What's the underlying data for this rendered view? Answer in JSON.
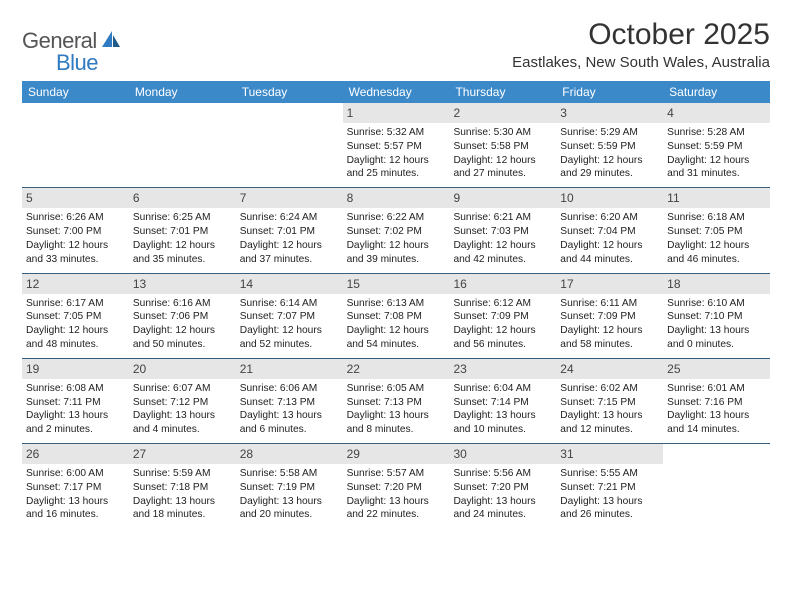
{
  "brand": {
    "name_a": "General",
    "name_b": "Blue"
  },
  "title": "October 2025",
  "location": "Eastlakes, New South Wales, Australia",
  "colors": {
    "header_bg": "#3b89c9",
    "header_text": "#ffffff",
    "daynum_bg": "#e6e6e6",
    "rule": "#3b5f7a",
    "brand_blue": "#2f7ac0",
    "brand_gray": "#555555"
  },
  "day_names": [
    "Sunday",
    "Monday",
    "Tuesday",
    "Wednesday",
    "Thursday",
    "Friday",
    "Saturday"
  ],
  "weeks": [
    [
      null,
      null,
      null,
      {
        "n": "1",
        "sr": "5:32 AM",
        "ss": "5:57 PM",
        "dl": "12 hours and 25 minutes."
      },
      {
        "n": "2",
        "sr": "5:30 AM",
        "ss": "5:58 PM",
        "dl": "12 hours and 27 minutes."
      },
      {
        "n": "3",
        "sr": "5:29 AM",
        "ss": "5:59 PM",
        "dl": "12 hours and 29 minutes."
      },
      {
        "n": "4",
        "sr": "5:28 AM",
        "ss": "5:59 PM",
        "dl": "12 hours and 31 minutes."
      }
    ],
    [
      {
        "n": "5",
        "sr": "6:26 AM",
        "ss": "7:00 PM",
        "dl": "12 hours and 33 minutes."
      },
      {
        "n": "6",
        "sr": "6:25 AM",
        "ss": "7:01 PM",
        "dl": "12 hours and 35 minutes."
      },
      {
        "n": "7",
        "sr": "6:24 AM",
        "ss": "7:01 PM",
        "dl": "12 hours and 37 minutes."
      },
      {
        "n": "8",
        "sr": "6:22 AM",
        "ss": "7:02 PM",
        "dl": "12 hours and 39 minutes."
      },
      {
        "n": "9",
        "sr": "6:21 AM",
        "ss": "7:03 PM",
        "dl": "12 hours and 42 minutes."
      },
      {
        "n": "10",
        "sr": "6:20 AM",
        "ss": "7:04 PM",
        "dl": "12 hours and 44 minutes."
      },
      {
        "n": "11",
        "sr": "6:18 AM",
        "ss": "7:05 PM",
        "dl": "12 hours and 46 minutes."
      }
    ],
    [
      {
        "n": "12",
        "sr": "6:17 AM",
        "ss": "7:05 PM",
        "dl": "12 hours and 48 minutes."
      },
      {
        "n": "13",
        "sr": "6:16 AM",
        "ss": "7:06 PM",
        "dl": "12 hours and 50 minutes."
      },
      {
        "n": "14",
        "sr": "6:14 AM",
        "ss": "7:07 PM",
        "dl": "12 hours and 52 minutes."
      },
      {
        "n": "15",
        "sr": "6:13 AM",
        "ss": "7:08 PM",
        "dl": "12 hours and 54 minutes."
      },
      {
        "n": "16",
        "sr": "6:12 AM",
        "ss": "7:09 PM",
        "dl": "12 hours and 56 minutes."
      },
      {
        "n": "17",
        "sr": "6:11 AM",
        "ss": "7:09 PM",
        "dl": "12 hours and 58 minutes."
      },
      {
        "n": "18",
        "sr": "6:10 AM",
        "ss": "7:10 PM",
        "dl": "13 hours and 0 minutes."
      }
    ],
    [
      {
        "n": "19",
        "sr": "6:08 AM",
        "ss": "7:11 PM",
        "dl": "13 hours and 2 minutes."
      },
      {
        "n": "20",
        "sr": "6:07 AM",
        "ss": "7:12 PM",
        "dl": "13 hours and 4 minutes."
      },
      {
        "n": "21",
        "sr": "6:06 AM",
        "ss": "7:13 PM",
        "dl": "13 hours and 6 minutes."
      },
      {
        "n": "22",
        "sr": "6:05 AM",
        "ss": "7:13 PM",
        "dl": "13 hours and 8 minutes."
      },
      {
        "n": "23",
        "sr": "6:04 AM",
        "ss": "7:14 PM",
        "dl": "13 hours and 10 minutes."
      },
      {
        "n": "24",
        "sr": "6:02 AM",
        "ss": "7:15 PM",
        "dl": "13 hours and 12 minutes."
      },
      {
        "n": "25",
        "sr": "6:01 AM",
        "ss": "7:16 PM",
        "dl": "13 hours and 14 minutes."
      }
    ],
    [
      {
        "n": "26",
        "sr": "6:00 AM",
        "ss": "7:17 PM",
        "dl": "13 hours and 16 minutes."
      },
      {
        "n": "27",
        "sr": "5:59 AM",
        "ss": "7:18 PM",
        "dl": "13 hours and 18 minutes."
      },
      {
        "n": "28",
        "sr": "5:58 AM",
        "ss": "7:19 PM",
        "dl": "13 hours and 20 minutes."
      },
      {
        "n": "29",
        "sr": "5:57 AM",
        "ss": "7:20 PM",
        "dl": "13 hours and 22 minutes."
      },
      {
        "n": "30",
        "sr": "5:56 AM",
        "ss": "7:20 PM",
        "dl": "13 hours and 24 minutes."
      },
      {
        "n": "31",
        "sr": "5:55 AM",
        "ss": "7:21 PM",
        "dl": "13 hours and 26 minutes."
      },
      null
    ]
  ],
  "labels": {
    "sunrise": "Sunrise:",
    "sunset": "Sunset:",
    "daylight": "Daylight:"
  }
}
